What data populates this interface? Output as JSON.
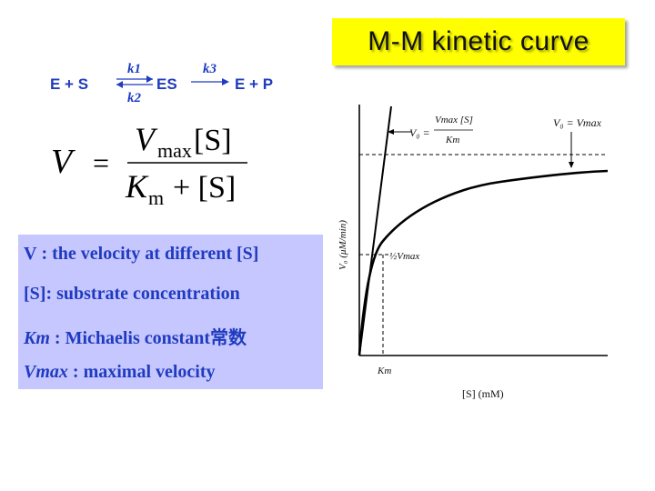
{
  "title": "M-M kinetic curve",
  "reaction": {
    "left": "E + S",
    "k1": "k1",
    "k2": "k2",
    "middle": "ES",
    "k3": "k3",
    "right": "E + P"
  },
  "equation": {
    "lhs": "V",
    "equals": "=",
    "numerator_v": "V",
    "numerator_sub": "max",
    "numerator_s": "[S]",
    "denominator_k": "K",
    "denominator_sub": "m",
    "denominator_rest": "+ [S]"
  },
  "definitions": [
    {
      "term": "V :",
      "text": "the velocity at different [S]"
    },
    {
      "term": "[S]:",
      "text": "substrate concentration"
    },
    {
      "term": "Km",
      "text": ": Michaelis constant常数"
    },
    {
      "term": "Vmax",
      "text": ": maximal velocity"
    }
  ],
  "graph": {
    "y_axis_label": "V₀ (μM/min)",
    "x_axis_label": "[S] (mM)",
    "linear_label_v0": "V₀ =",
    "linear_label_num": "Vmax [S]",
    "linear_label_den": "Km",
    "max_label": "V₀ = Vmax",
    "half_label": "½Vmax",
    "km_label": "Km"
  }
}
